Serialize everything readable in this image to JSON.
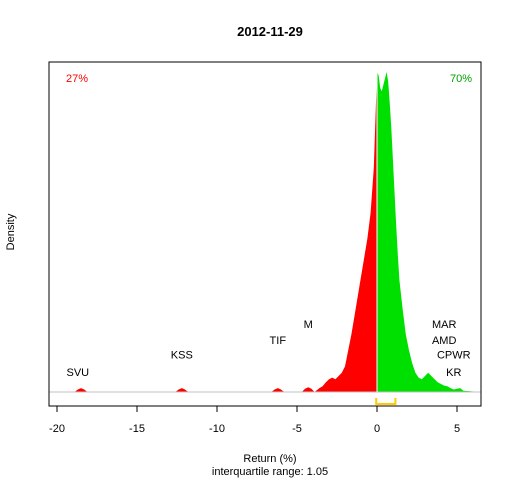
{
  "chart_data": {
    "type": "area",
    "title": "2012-11-29",
    "xlabel": "Return (%)",
    "subtitle": "interquartile range: 1.05",
    "ylabel": "Density",
    "xlim": [
      -20.5,
      6.5
    ],
    "ylim": [
      0,
      1.0
    ],
    "xticks": [
      -20,
      -15,
      -10,
      -5,
      0,
      5
    ],
    "xtick_labels": [
      "-20",
      "-15",
      "-10",
      "-5",
      "0",
      "5"
    ],
    "negative_share": "27%",
    "positive_share": "70%",
    "colors": {
      "negative": "#ff0000",
      "positive": "#00e000",
      "iqr": "#ffcc00",
      "baseline": "#c0c0c0"
    },
    "iqr": [
      -0.05,
      1.15
    ],
    "series": [
      {
        "x": [
          -20.5,
          -18.9,
          -18.7,
          -18.5,
          -18.3,
          -18.1,
          -12.6,
          -12.4,
          -12.2,
          -12.0,
          -11.8,
          -6.6,
          -6.4,
          -6.2,
          -6.0,
          -5.8,
          -4.7,
          -4.5,
          -4.3,
          -4.1,
          -3.9,
          -3.6,
          -3.4,
          -3.2,
          -3.0,
          -2.8,
          -2.6,
          -2.4,
          -2.2,
          -2.0,
          -1.8,
          -1.6,
          -1.4,
          -1.2,
          -1.0,
          -0.8,
          -0.6,
          -0.4,
          -0.2,
          0.0,
          0.1,
          0.2,
          0.3,
          0.4,
          0.5,
          0.6,
          0.7,
          0.8,
          0.9,
          1.0,
          1.1,
          1.2,
          1.3,
          1.4,
          1.6,
          1.8,
          2.0,
          2.2,
          2.4,
          2.6,
          2.8,
          3.0,
          3.2,
          3.4,
          3.6,
          3.8,
          4.0,
          4.2,
          4.4,
          4.6,
          4.8,
          5.0,
          5.2,
          5.4,
          6.5
        ],
        "y": [
          0,
          0,
          0.008,
          0.012,
          0.008,
          0,
          0,
          0.008,
          0.012,
          0.008,
          0,
          0,
          0.008,
          0.012,
          0.008,
          0,
          0,
          0.01,
          0.015,
          0.01,
          0,
          0.012,
          0.018,
          0.03,
          0.04,
          0.045,
          0.04,
          0.05,
          0.06,
          0.08,
          0.13,
          0.18,
          0.24,
          0.3,
          0.36,
          0.42,
          0.48,
          0.56,
          0.7,
          1.0,
          0.99,
          0.95,
          0.94,
          0.96,
          0.98,
          1.0,
          0.97,
          0.9,
          0.82,
          0.72,
          0.62,
          0.52,
          0.43,
          0.35,
          0.26,
          0.18,
          0.13,
          0.09,
          0.06,
          0.045,
          0.04,
          0.05,
          0.06,
          0.05,
          0.04,
          0.03,
          0.025,
          0.02,
          0.018,
          0.012,
          0.008,
          0.01,
          0.012,
          0.004,
          0
        ]
      }
    ],
    "annotations": [
      {
        "text": "SVU",
        "x": -18.7,
        "y": 0.05
      },
      {
        "text": "KSS",
        "x": -12.2,
        "y": 0.105
      },
      {
        "text": "TIF",
        "x": -6.2,
        "y": 0.15
      },
      {
        "text": "M",
        "x": -4.3,
        "y": 0.2
      },
      {
        "text": "MAR",
        "x": 4.2,
        "y": 0.2
      },
      {
        "text": "AMD",
        "x": 4.2,
        "y": 0.15
      },
      {
        "text": "CPWR",
        "x": 4.8,
        "y": 0.105
      },
      {
        "text": "KR",
        "x": 4.8,
        "y": 0.05
      }
    ]
  }
}
